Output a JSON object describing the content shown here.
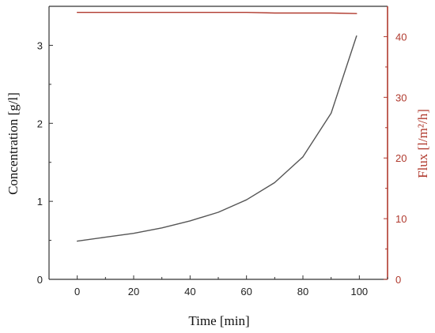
{
  "chart_data": {
    "type": "line",
    "x": [
      0,
      10,
      20,
      30,
      40,
      50,
      60,
      70,
      80,
      90,
      99
    ],
    "series": [
      {
        "axis": "left",
        "color": "#555555",
        "values": [
          0.49,
          0.54,
          0.59,
          0.66,
          0.75,
          0.86,
          1.02,
          1.24,
          1.57,
          2.13,
          3.12
        ]
      },
      {
        "axis": "right",
        "color": "#b03a2e",
        "values": [
          44.0,
          44.0,
          44.0,
          44.0,
          44.0,
          44.0,
          44.0,
          43.9,
          43.9,
          43.9,
          43.8
        ]
      }
    ],
    "xlabel": "Time [min]",
    "ylabel": "Concentration [g/l]",
    "y2label": "Flux [l/m²/h]",
    "xlim": [
      -10,
      110
    ],
    "ylim": [
      0,
      3.5
    ],
    "y2lim": [
      0,
      45
    ],
    "xticks": [
      "0",
      "20",
      "40",
      "60",
      "80",
      "100"
    ],
    "yticks": [
      "0",
      "1",
      "2",
      "3"
    ],
    "y2ticks": [
      "0",
      "10",
      "20",
      "30",
      "40"
    ],
    "grid": false,
    "right_axis_color": "#b03a2e"
  }
}
